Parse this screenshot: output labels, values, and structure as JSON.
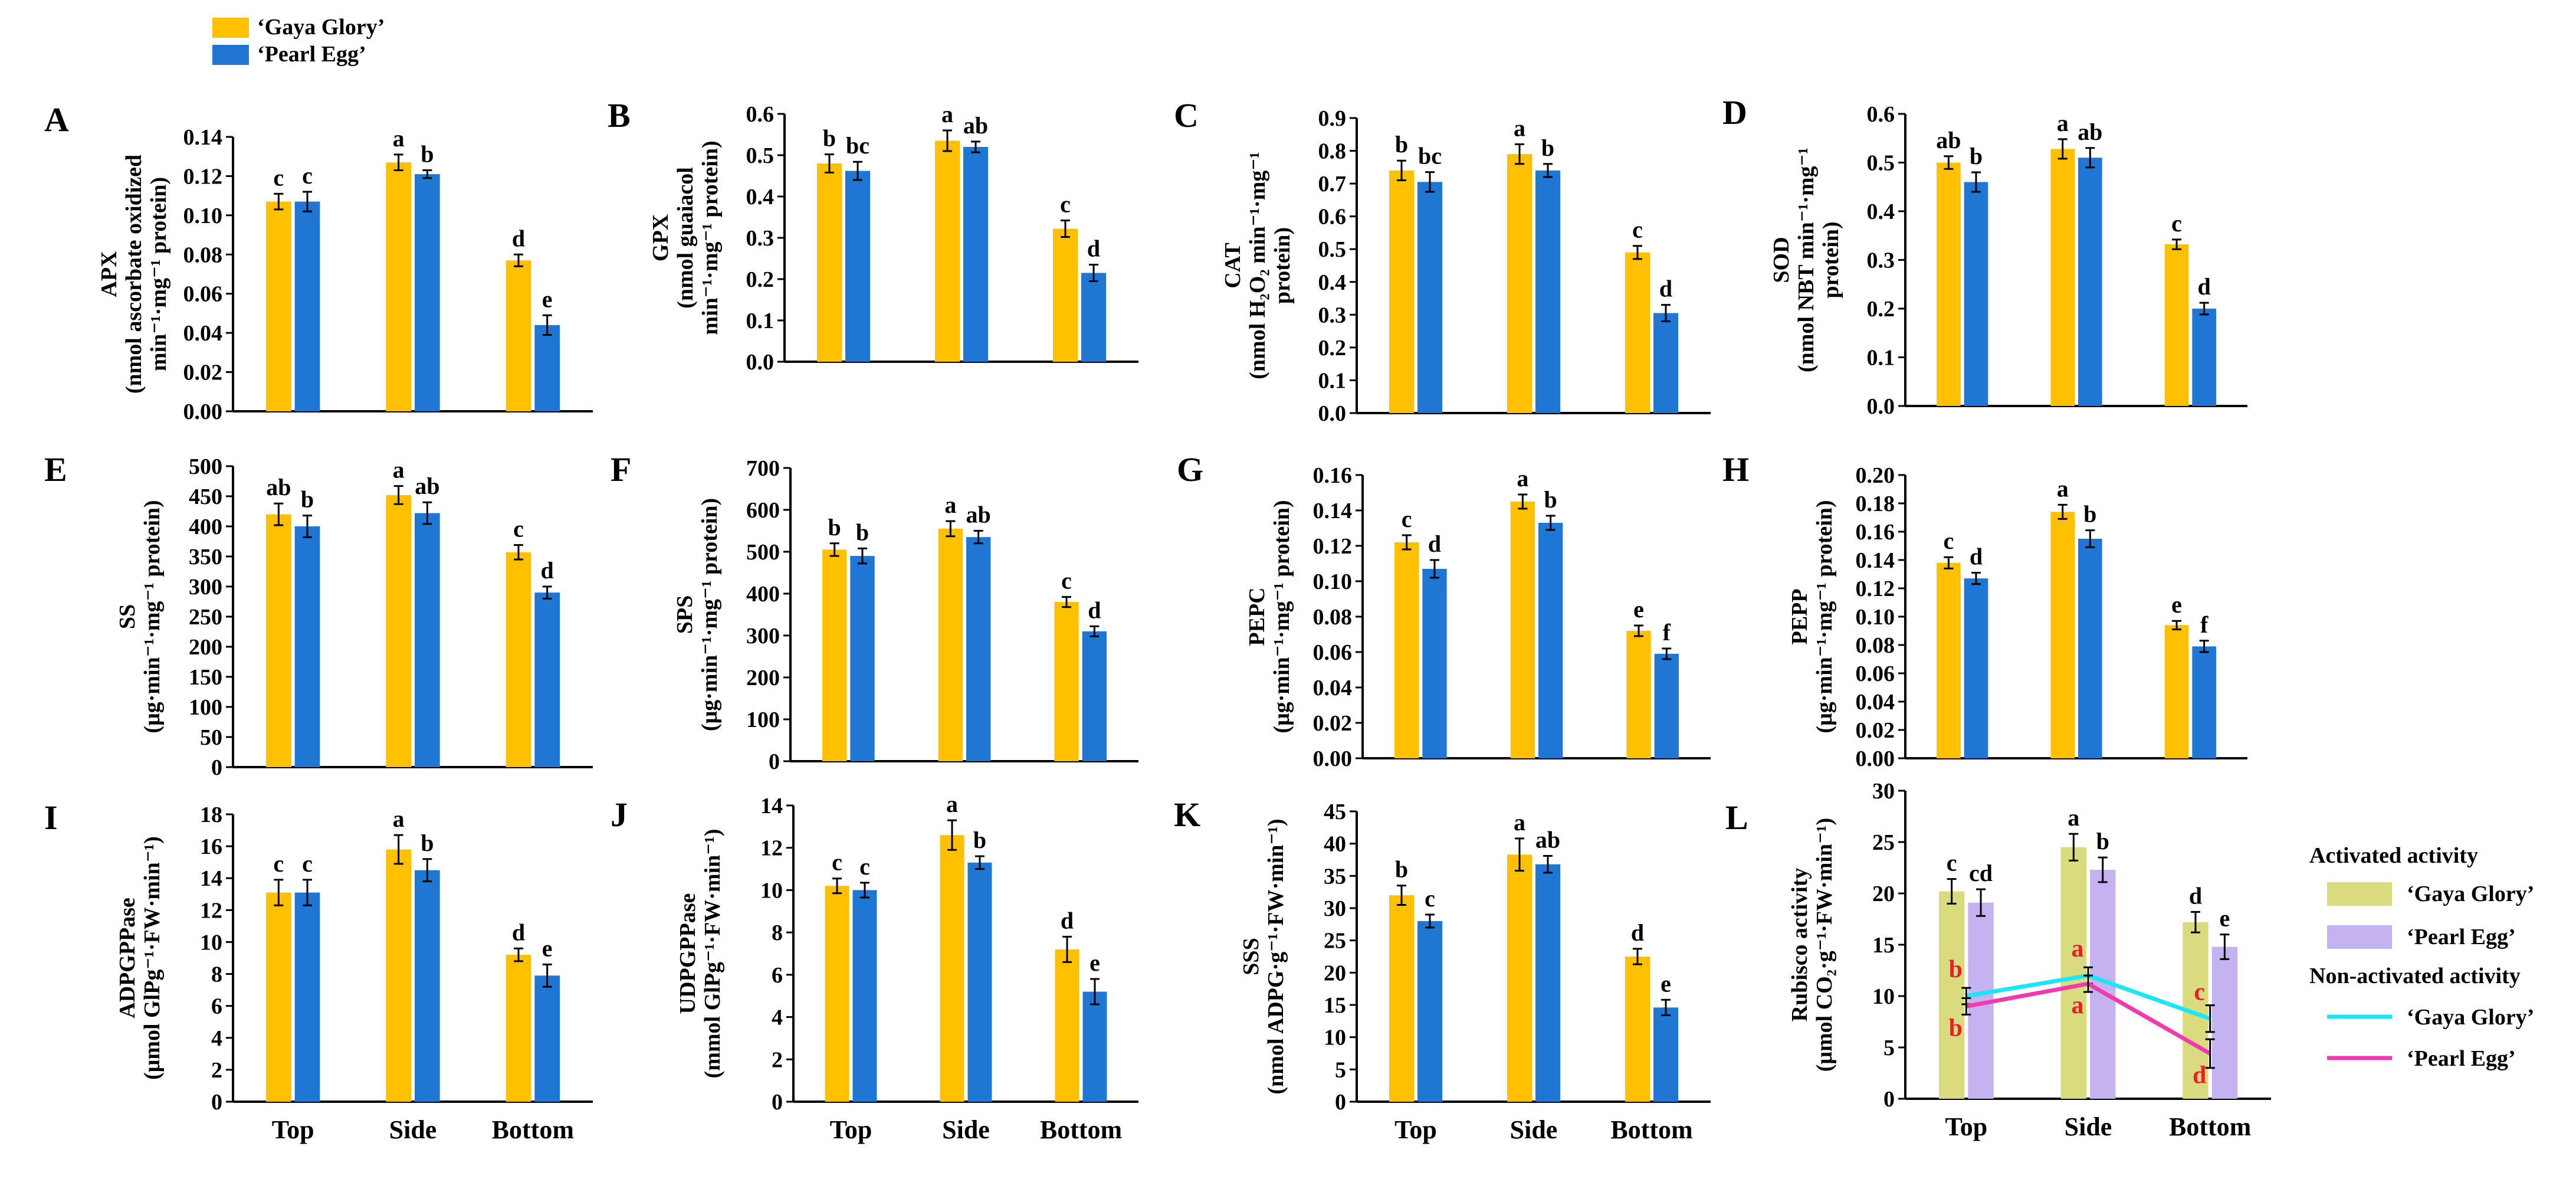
{
  "colors": {
    "gaya_glory": "#FFC000",
    "pearl_egg": "#1F77D3",
    "activated_gaya": "#D9DB7E",
    "activated_pearl": "#C4B3F0",
    "nonact_gaya_line": "#1CE6F5",
    "nonact_pearl_line": "#F03BAE",
    "letter_red": "#E8202A",
    "axis": "#000000"
  },
  "legend": {
    "series": [
      {
        "name": "‘Gaya Glory’",
        "color_key": "gaya_glory"
      },
      {
        "name": "‘Pearl Egg’",
        "color_key": "pearl_egg"
      }
    ]
  },
  "chart_data": [
    {
      "id": "A",
      "panel_label": "A",
      "type": "bar",
      "ylabel_lines": [
        "APX",
        "(nmol ascorbate oxidized",
        "min⁻¹·mg⁻¹ protein)"
      ],
      "ylim": [
        0,
        0.14
      ],
      "ticks": [
        "0.00",
        "0.02",
        "0.04",
        "0.06",
        "0.08",
        "0.10",
        "0.12",
        "0.14"
      ],
      "categories": [
        "Top",
        "Side",
        "Bottom"
      ],
      "show_xlabels": false,
      "series": [
        {
          "name": "‘Gaya Glory’",
          "values": [
            0.107,
            0.127,
            0.077
          ],
          "errors": [
            0.004,
            0.004,
            0.003
          ],
          "letters": [
            "c",
            "a",
            "d"
          ]
        },
        {
          "name": "‘Pearl Egg’",
          "values": [
            0.107,
            0.121,
            0.044
          ],
          "errors": [
            0.005,
            0.002,
            0.005
          ],
          "letters": [
            "c",
            "b",
            "e"
          ]
        }
      ]
    },
    {
      "id": "B",
      "panel_label": "B",
      "type": "bar",
      "ylabel_lines": [
        "GPX",
        "(nmol guaiacol",
        "min⁻¹·mg⁻¹ protein)"
      ],
      "ylim": [
        0,
        0.6
      ],
      "ticks": [
        "0.0",
        "0.1",
        "0.2",
        "0.3",
        "0.4",
        "0.5",
        "0.6"
      ],
      "categories": [
        "Top",
        "Side",
        "Bottom"
      ],
      "show_xlabels": false,
      "series": [
        {
          "name": "‘Gaya Glory’",
          "values": [
            0.48,
            0.535,
            0.322
          ],
          "errors": [
            0.022,
            0.025,
            0.02
          ],
          "letters": [
            "b",
            "a",
            "c"
          ]
        },
        {
          "name": "‘Pearl Egg’",
          "values": [
            0.462,
            0.52,
            0.215
          ],
          "errors": [
            0.022,
            0.013,
            0.02
          ],
          "letters": [
            "bc",
            "ab",
            "d"
          ]
        }
      ]
    },
    {
      "id": "C",
      "panel_label": "C",
      "type": "bar",
      "ylabel_lines": [
        "CAT",
        "(nmol H₂O₂ min⁻¹·mg⁻¹",
        "protein)"
      ],
      "ylim": [
        0,
        0.9
      ],
      "ticks": [
        "0.0",
        "0.1",
        "0.2",
        "0.3",
        "0.4",
        "0.5",
        "0.6",
        "0.7",
        "0.8",
        "0.9"
      ],
      "categories": [
        "Top",
        "Side",
        "Bottom"
      ],
      "show_xlabels": false,
      "series": [
        {
          "name": "‘Gaya Glory’",
          "values": [
            0.74,
            0.79,
            0.49
          ],
          "errors": [
            0.03,
            0.03,
            0.02
          ],
          "letters": [
            "b",
            "a",
            "c"
          ]
        },
        {
          "name": "‘Pearl Egg’",
          "values": [
            0.705,
            0.74,
            0.305
          ],
          "errors": [
            0.03,
            0.02,
            0.025
          ],
          "letters": [
            "bc",
            "b",
            "d"
          ]
        }
      ]
    },
    {
      "id": "D",
      "panel_label": "D",
      "type": "bar",
      "ylabel_lines": [
        "SOD",
        "(nmol NBT min⁻¹·mg⁻¹",
        "protein)"
      ],
      "ylim": [
        0,
        0.6
      ],
      "ticks": [
        "0.0",
        "0.1",
        "0.2",
        "0.3",
        "0.4",
        "0.5",
        "0.6"
      ],
      "categories": [
        "Top",
        "Side",
        "Bottom"
      ],
      "show_xlabels": false,
      "series": [
        {
          "name": "‘Gaya Glory’",
          "values": [
            0.5,
            0.528,
            0.332
          ],
          "errors": [
            0.013,
            0.02,
            0.01
          ],
          "letters": [
            "ab",
            "a",
            "c"
          ]
        },
        {
          "name": "‘Pearl Egg’",
          "values": [
            0.46,
            0.51,
            0.2
          ],
          "errors": [
            0.02,
            0.02,
            0.012
          ],
          "letters": [
            "b",
            "ab",
            "d"
          ]
        }
      ]
    },
    {
      "id": "E",
      "panel_label": "E",
      "type": "bar",
      "ylabel_lines": [
        "SS",
        "(μg·min⁻¹·mg⁻¹ protein)"
      ],
      "ylim": [
        0,
        500
      ],
      "ticks": [
        "0",
        "50",
        "100",
        "150",
        "200",
        "250",
        "300",
        "350",
        "400",
        "450",
        "500"
      ],
      "categories": [
        "Top",
        "Side",
        "Bottom"
      ],
      "show_xlabels": false,
      "series": [
        {
          "name": "‘Gaya Glory’",
          "values": [
            420,
            452,
            357
          ],
          "errors": [
            18,
            15,
            12
          ],
          "letters": [
            "ab",
            "a",
            "c"
          ]
        },
        {
          "name": "‘Pearl Egg’",
          "values": [
            400,
            422,
            290
          ],
          "errors": [
            18,
            18,
            10
          ],
          "letters": [
            "b",
            "ab",
            "d"
          ]
        }
      ]
    },
    {
      "id": "F",
      "panel_label": "F",
      "type": "bar",
      "ylabel_lines": [
        "SPS",
        "(μg·min⁻¹·mg⁻¹ protein)"
      ],
      "ylim": [
        0,
        700
      ],
      "ticks": [
        "0",
        "100",
        "200",
        "300",
        "400",
        "500",
        "600",
        "700"
      ],
      "categories": [
        "Top",
        "Side",
        "Bottom"
      ],
      "show_xlabels": false,
      "series": [
        {
          "name": "‘Gaya Glory’",
          "values": [
            505,
            555,
            380
          ],
          "errors": [
            15,
            18,
            12
          ],
          "letters": [
            "b",
            "a",
            "c"
          ]
        },
        {
          "name": "‘Pearl Egg’",
          "values": [
            490,
            535,
            310
          ],
          "errors": [
            18,
            15,
            12
          ],
          "letters": [
            "b",
            "ab",
            "d"
          ]
        }
      ]
    },
    {
      "id": "G",
      "panel_label": "G",
      "type": "bar",
      "ylabel_lines": [
        "PEPC",
        "(μg·min⁻¹·mg⁻¹ protein)"
      ],
      "ylim": [
        0,
        0.16
      ],
      "ticks": [
        "0.00",
        "0.02",
        "0.04",
        "0.06",
        "0.08",
        "0.10",
        "0.12",
        "0.14",
        "0.16"
      ],
      "categories": [
        "Top",
        "Side",
        "Bottom"
      ],
      "show_xlabels": false,
      "series": [
        {
          "name": "‘Gaya Glory’",
          "values": [
            0.122,
            0.145,
            0.072
          ],
          "errors": [
            0.004,
            0.004,
            0.003
          ],
          "letters": [
            "c",
            "a",
            "e"
          ]
        },
        {
          "name": "‘Pearl Egg’",
          "values": [
            0.107,
            0.133,
            0.059
          ],
          "errors": [
            0.005,
            0.004,
            0.003
          ],
          "letters": [
            "d",
            "b",
            "f"
          ]
        }
      ]
    },
    {
      "id": "H",
      "panel_label": "H",
      "type": "bar",
      "ylabel_lines": [
        "PEPP",
        "(μg·min⁻¹·mg⁻¹ protein)"
      ],
      "ylim": [
        0,
        0.2
      ],
      "ticks": [
        "0.00",
        "0.02",
        "0.04",
        "0.06",
        "0.08",
        "0.10",
        "0.12",
        "0.14",
        "0.16",
        "0.18",
        "0.20"
      ],
      "categories": [
        "Top",
        "Side",
        "Bottom"
      ],
      "show_xlabels": false,
      "series": [
        {
          "name": "‘Gaya Glory’",
          "values": [
            0.138,
            0.174,
            0.094
          ],
          "errors": [
            0.004,
            0.005,
            0.003
          ],
          "letters": [
            "c",
            "a",
            "e"
          ]
        },
        {
          "name": "‘Pearl Egg’",
          "values": [
            0.127,
            0.155,
            0.079
          ],
          "errors": [
            0.004,
            0.006,
            0.004
          ],
          "letters": [
            "d",
            "b",
            "f"
          ]
        }
      ]
    },
    {
      "id": "I",
      "panel_label": "I",
      "type": "bar",
      "ylabel_lines": [
        "ADPGPPase",
        "(μmol GlPg⁻¹·FW·min⁻¹)"
      ],
      "ylim": [
        0,
        18
      ],
      "ticks": [
        "0",
        "2",
        "4",
        "6",
        "8",
        "10",
        "12",
        "14",
        "16",
        "18"
      ],
      "categories": [
        "Top",
        "Side",
        "Bottom"
      ],
      "show_xlabels": true,
      "series": [
        {
          "name": "‘Gaya Glory’",
          "values": [
            13.1,
            15.8,
            9.2
          ],
          "errors": [
            0.8,
            0.9,
            0.4
          ],
          "letters": [
            "c",
            "a",
            "d"
          ]
        },
        {
          "name": "‘Pearl Egg’",
          "values": [
            13.1,
            14.5,
            7.9
          ],
          "errors": [
            0.8,
            0.7,
            0.7
          ],
          "letters": [
            "c",
            "b",
            "e"
          ]
        }
      ]
    },
    {
      "id": "J",
      "panel_label": "J",
      "type": "bar",
      "ylabel_lines": [
        "UDPGPPase",
        "(mmol GlPg⁻¹·FW·min⁻¹)"
      ],
      "ylim": [
        0,
        14
      ],
      "ticks": [
        "0",
        "2",
        "4",
        "6",
        "8",
        "10",
        "12",
        "14"
      ],
      "categories": [
        "Top",
        "Side",
        "Bottom"
      ],
      "show_xlabels": true,
      "series": [
        {
          "name": "‘Gaya Glory’",
          "values": [
            10.2,
            12.6,
            7.2
          ],
          "errors": [
            0.35,
            0.7,
            0.6
          ],
          "letters": [
            "c",
            "a",
            "d"
          ]
        },
        {
          "name": "‘Pearl Egg’",
          "values": [
            10.0,
            11.3,
            5.2
          ],
          "errors": [
            0.35,
            0.3,
            0.6
          ],
          "letters": [
            "c",
            "b",
            "e"
          ]
        }
      ]
    },
    {
      "id": "K",
      "panel_label": "K",
      "type": "bar",
      "ylabel_lines": [
        "SSS",
        "(nmol ADPG·g⁻¹·FW·min⁻¹)"
      ],
      "ylim": [
        0,
        45
      ],
      "ticks": [
        "0",
        "5",
        "10",
        "15",
        "20",
        "25",
        "30",
        "35",
        "40",
        "45"
      ],
      "categories": [
        "Top",
        "Side",
        "Bottom"
      ],
      "show_xlabels": true,
      "series": [
        {
          "name": "‘Gaya Glory’",
          "values": [
            32,
            38.3,
            22.5
          ],
          "errors": [
            1.5,
            2.5,
            1.2
          ],
          "letters": [
            "b",
            "a",
            "d"
          ]
        },
        {
          "name": "‘Pearl Egg’",
          "values": [
            28,
            36.8,
            14.6
          ],
          "errors": [
            1.0,
            1.3,
            1.2
          ],
          "letters": [
            "c",
            "ab",
            "e"
          ]
        }
      ]
    },
    {
      "id": "L",
      "panel_label": "L",
      "type": "bar+line",
      "ylabel_lines": [
        "Rubisco activity",
        "(μmol CO₂·g⁻¹·FW·min⁻¹)"
      ],
      "ylim": [
        0,
        30
      ],
      "ticks": [
        "0",
        "5",
        "10",
        "15",
        "20",
        "25",
        "30"
      ],
      "categories": [
        "Top",
        "Side",
        "Bottom"
      ],
      "show_xlabels": true,
      "series": [
        {
          "name": "‘Gaya Glory’",
          "values": [
            20.2,
            24.5,
            17.2
          ],
          "errors": [
            1.2,
            1.3,
            1.0
          ],
          "letters": [
            "c",
            "a",
            "d"
          ]
        },
        {
          "name": "‘Pearl Egg’",
          "values": [
            19.1,
            22.3,
            14.8
          ],
          "errors": [
            1.3,
            1.2,
            1.2
          ],
          "letters": [
            "cd",
            "b",
            "e"
          ]
        }
      ],
      "line_series": [
        {
          "name": "‘Gaya Glory’",
          "values": [
            10.0,
            12.0,
            7.8
          ],
          "errors": [
            0.8,
            0.8,
            1.3
          ],
          "letters": [
            "b",
            "a",
            "c"
          ]
        },
        {
          "name": "‘Pearl Egg’",
          "values": [
            9.0,
            11.2,
            4.4
          ],
          "errors": [
            0.8,
            0.8,
            1.4
          ],
          "letters": [
            "b",
            "a",
            "d"
          ]
        }
      ],
      "legend_activated_title": "Activated activity",
      "legend_nonactivated_title": "Non-activated activity",
      "legend_activated": [
        "‘Gaya Glory’",
        "‘Pearl Egg’"
      ],
      "legend_nonactivated": [
        "‘Gaya Glory’",
        "‘Pearl Egg’"
      ]
    }
  ]
}
